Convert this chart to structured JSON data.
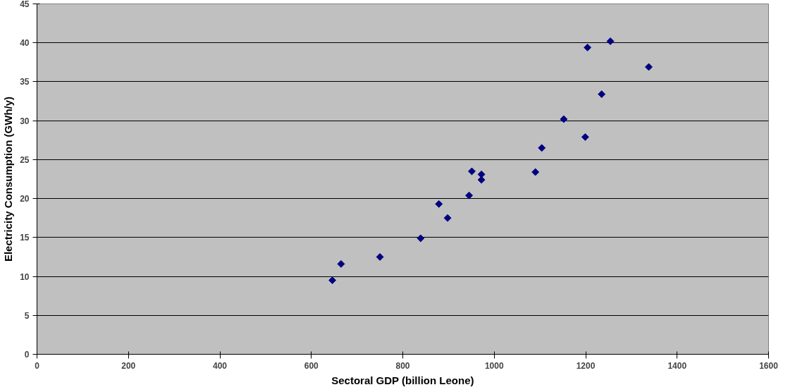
{
  "chart_data": {
    "type": "scatter",
    "xlabel": "Sectoral GDP (billion Leone)",
    "ylabel": "Electricity Consumption (GWh/y)",
    "x": [
      646,
      665,
      750,
      839,
      879,
      898,
      945,
      951,
      972,
      972,
      1090,
      1104,
      1152,
      1199,
      1204,
      1235,
      1254,
      1338
    ],
    "series": [
      {
        "color": "#000080",
        "values": [
          9.5,
          11.6,
          12.5,
          14.9,
          19.3,
          17.5,
          20.4,
          23.5,
          23.1,
          22.4,
          23.4,
          26.5,
          30.2,
          27.9,
          39.4,
          33.4,
          40.2,
          36.9
        ]
      }
    ],
    "xlim": [
      0,
      1600
    ],
    "xticks": [
      0,
      200,
      400,
      600,
      800,
      1000,
      1200,
      1400,
      1600
    ],
    "ylim": [
      0,
      45
    ],
    "yticks": [
      0,
      5,
      10,
      15,
      20,
      25,
      30,
      35,
      40,
      45
    ],
    "grid": "y",
    "marker": "diamond"
  }
}
